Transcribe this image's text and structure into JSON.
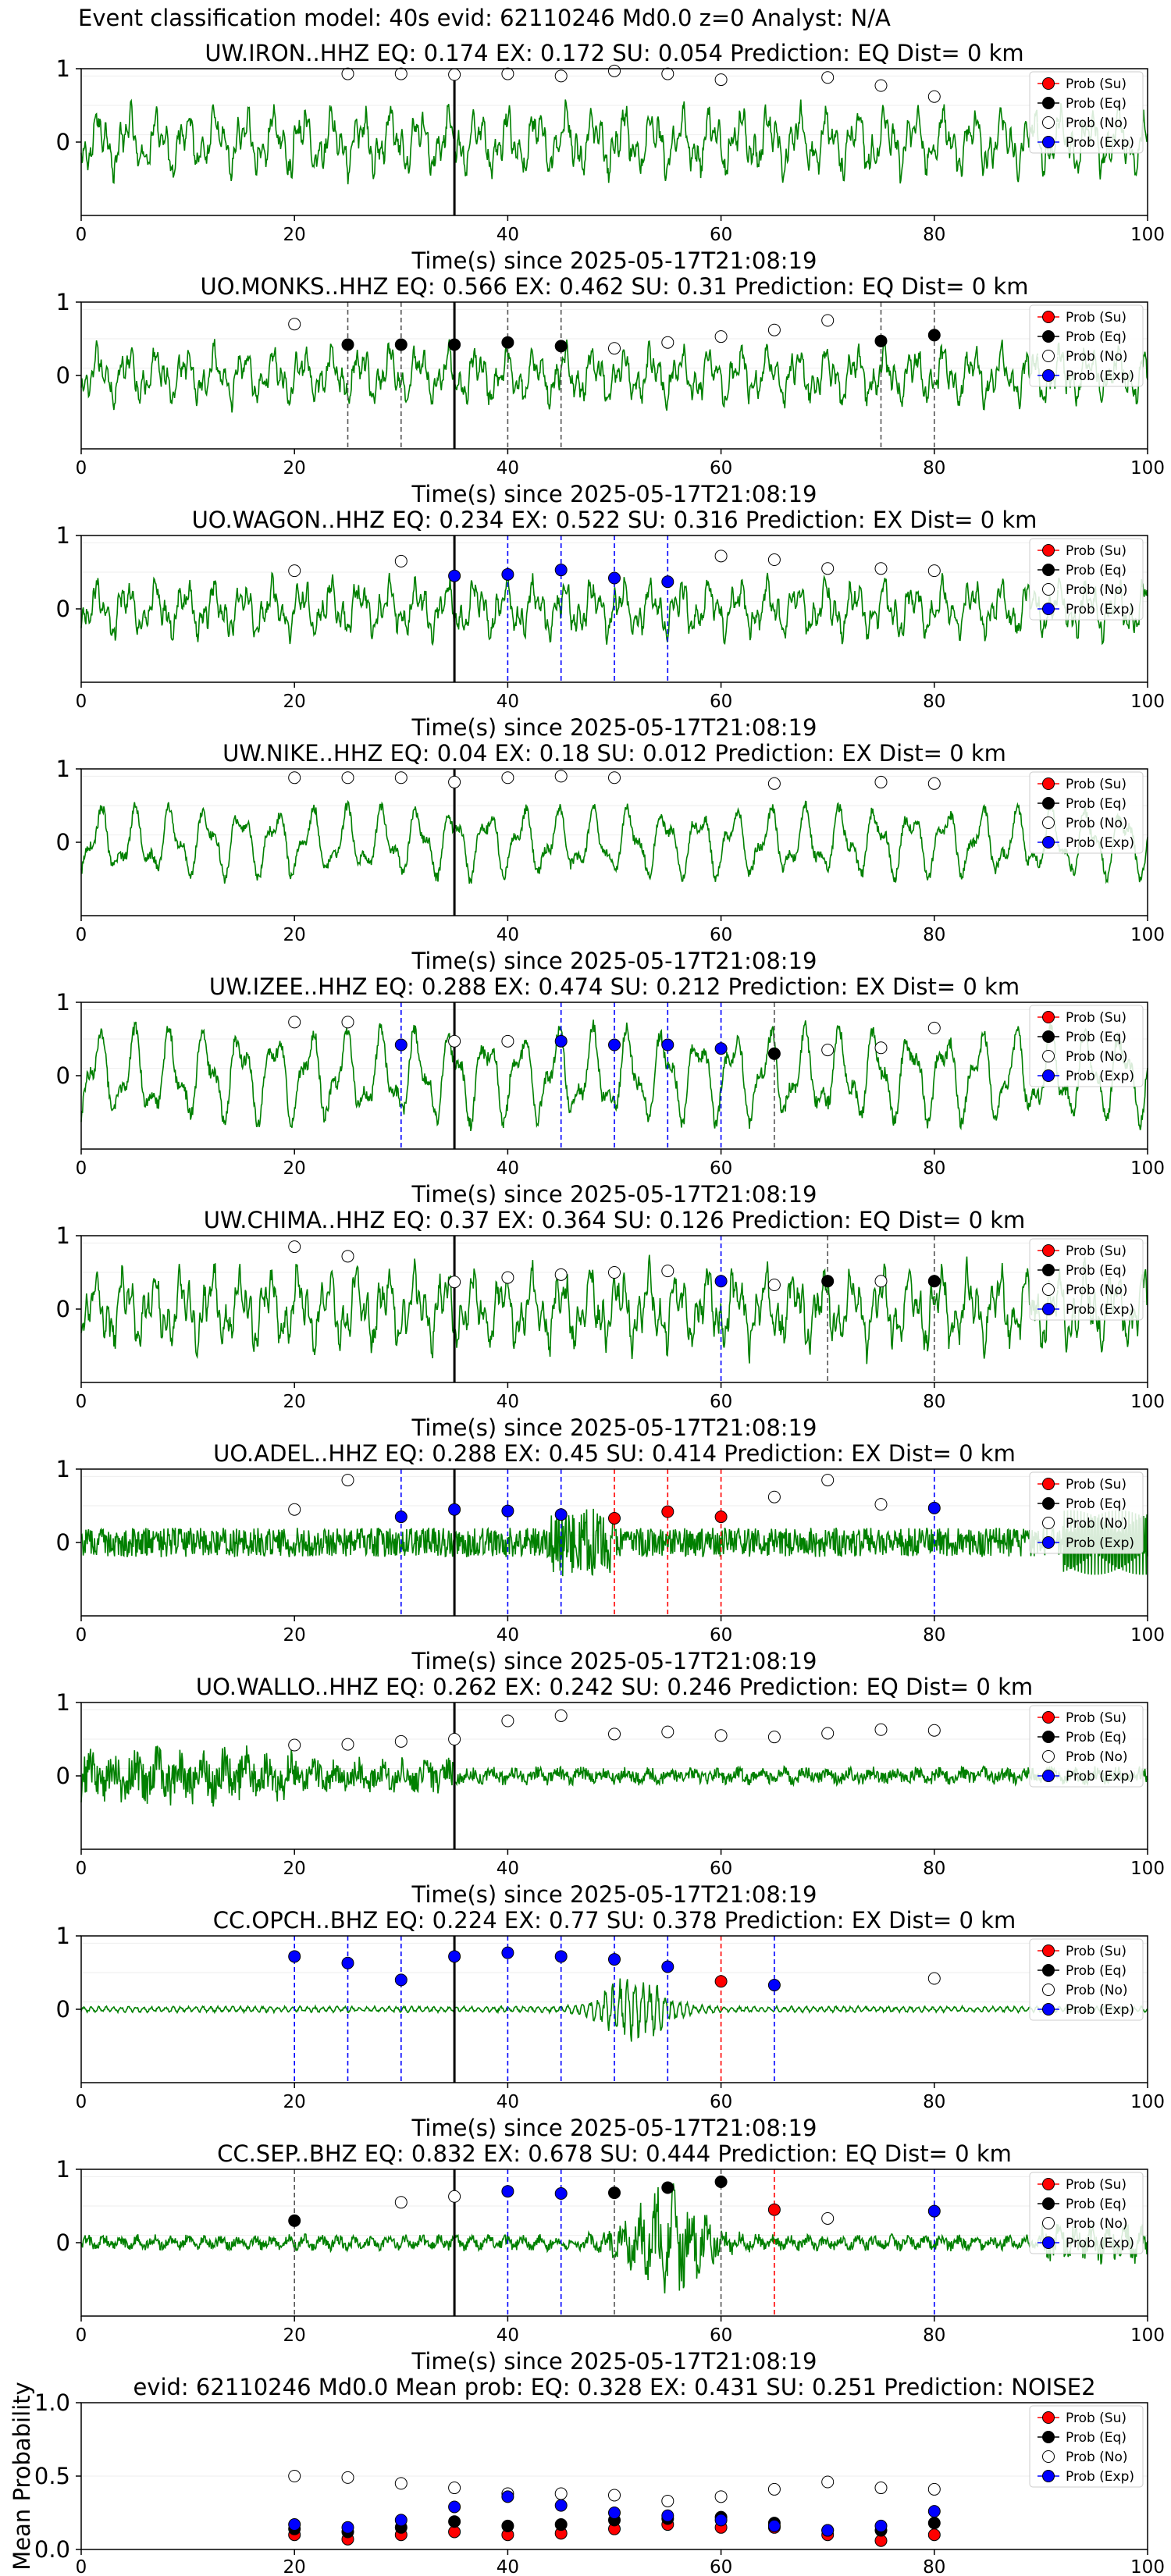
{
  "figure_title": "Event classification model: 40s evid: 62110246 Md0.0 z=0 Analyst: N/A",
  "legend": [
    "Prob (Su)",
    "Prob (Eq)",
    "Prob (No)",
    "Prob (Exp)"
  ],
  "colors": {
    "waveform": "#008000",
    "su": "#ff0000",
    "eq": "#000000",
    "no": "#ffffff",
    "exp": "#0000ff",
    "pick_line": "#000000"
  },
  "chart_data": [
    {
      "type": "line",
      "title": "UW.IRON..HHZ   EQ: 0.174  EX: 0.172  SU: 0.054   Prediction: EQ    Dist= 0 km",
      "xlabel": "Time(s) since 2025-05-17T21:08:19",
      "xlim": [
        0,
        100
      ],
      "ylim": [
        -1,
        1
      ],
      "xticks": [
        "0",
        "20",
        "40",
        "60",
        "80",
        "100"
      ],
      "yticks": [
        "1",
        "0"
      ],
      "pick_time": 35,
      "waveform_char": "broadband",
      "waveform_amp": 0.35,
      "windows": [
        {
          "t": 25,
          "no": 0.93
        },
        {
          "t": 30,
          "no": 0.93
        },
        {
          "t": 35,
          "no": 0.92
        },
        {
          "t": 40,
          "no": 0.93
        },
        {
          "t": 45,
          "no": 0.9
        },
        {
          "t": 50,
          "no": 0.97
        },
        {
          "t": 55,
          "no": 0.93
        },
        {
          "t": 60,
          "no": 0.85
        },
        {
          "t": 70,
          "no": 0.88
        },
        {
          "t": 75,
          "no": 0.77
        },
        {
          "t": 80,
          "no": 0.62
        }
      ],
      "decision_lines": []
    },
    {
      "type": "line",
      "title": "UO.MONKS..HHZ   EQ: 0.566  EX: 0.462  SU: 0.31   Prediction: EQ    Dist= 0 km",
      "xlabel": "Time(s) since 2025-05-17T21:08:19",
      "xlim": [
        0,
        100
      ],
      "ylim": [
        -1,
        1
      ],
      "xticks": [
        "0",
        "20",
        "40",
        "60",
        "80",
        "100"
      ],
      "yticks": [
        "1",
        "0"
      ],
      "pick_time": 35,
      "waveform_char": "broadband",
      "waveform_amp": 0.3,
      "windows": [
        {
          "t": 20,
          "no": 0.7
        },
        {
          "t": 25,
          "eq": 0.42
        },
        {
          "t": 30,
          "eq": 0.42
        },
        {
          "t": 35,
          "eq": 0.42
        },
        {
          "t": 40,
          "eq": 0.45
        },
        {
          "t": 45,
          "eq": 0.4
        },
        {
          "t": 50,
          "no": 0.37
        },
        {
          "t": 55,
          "no": 0.45
        },
        {
          "t": 60,
          "no": 0.53
        },
        {
          "t": 65,
          "no": 0.62
        },
        {
          "t": 70,
          "no": 0.75
        },
        {
          "t": 75,
          "eq": 0.47
        },
        {
          "t": 80,
          "eq": 0.55
        }
      ],
      "decision_lines": [
        {
          "t": 25,
          "cls": "eq"
        },
        {
          "t": 30,
          "cls": "eq"
        },
        {
          "t": 40,
          "cls": "eq"
        },
        {
          "t": 45,
          "cls": "eq"
        },
        {
          "t": 75,
          "cls": "eq"
        },
        {
          "t": 80,
          "cls": "eq"
        }
      ]
    },
    {
      "type": "line",
      "title": "UO.WAGON..HHZ   EQ: 0.234  EX: 0.522  SU: 0.316   Prediction: EX    Dist= 0 km",
      "xlabel": "Time(s) since 2025-05-17T21:08:19",
      "xlim": [
        0,
        100
      ],
      "ylim": [
        -1,
        1
      ],
      "xticks": [
        "0",
        "20",
        "40",
        "60",
        "80",
        "100"
      ],
      "yticks": [
        "1",
        "0"
      ],
      "pick_time": 35,
      "waveform_char": "broadband",
      "waveform_amp": 0.3,
      "windows": [
        {
          "t": 20,
          "no": 0.52
        },
        {
          "t": 30,
          "no": 0.65
        },
        {
          "t": 35,
          "exp": 0.45
        },
        {
          "t": 40,
          "exp": 0.47
        },
        {
          "t": 45,
          "exp": 0.53
        },
        {
          "t": 50,
          "exp": 0.42
        },
        {
          "t": 55,
          "exp": 0.37
        },
        {
          "t": 60,
          "no": 0.72
        },
        {
          "t": 65,
          "no": 0.67
        },
        {
          "t": 70,
          "no": 0.55
        },
        {
          "t": 75,
          "no": 0.55
        },
        {
          "t": 80,
          "no": 0.52
        }
      ],
      "decision_lines": [
        {
          "t": 40,
          "cls": "exp"
        },
        {
          "t": 45,
          "cls": "exp"
        },
        {
          "t": 50,
          "cls": "exp"
        },
        {
          "t": 55,
          "cls": "exp"
        }
      ]
    },
    {
      "type": "line",
      "title": "UW.NIKE..HHZ   EQ: 0.04  EX: 0.18  SU: 0.012   Prediction: EX    Dist= 0 km",
      "xlabel": "Time(s) since 2025-05-17T21:08:19",
      "xlim": [
        0,
        100
      ],
      "ylim": [
        -1,
        1
      ],
      "xticks": [
        "0",
        "20",
        "40",
        "60",
        "80",
        "100"
      ],
      "yticks": [
        "1",
        "0"
      ],
      "pick_time": 35,
      "waveform_char": "lowfreq",
      "waveform_amp": 0.38,
      "windows": [
        {
          "t": 20,
          "no": 0.88
        },
        {
          "t": 25,
          "no": 0.88
        },
        {
          "t": 30,
          "no": 0.88
        },
        {
          "t": 35,
          "no": 0.82
        },
        {
          "t": 40,
          "no": 0.88
        },
        {
          "t": 45,
          "no": 0.9
        },
        {
          "t": 50,
          "no": 0.88
        },
        {
          "t": 65,
          "no": 0.8
        },
        {
          "t": 75,
          "no": 0.82
        },
        {
          "t": 80,
          "no": 0.8
        }
      ],
      "decision_lines": []
    },
    {
      "type": "line",
      "title": "UW.IZEE..HHZ   EQ: 0.288  EX: 0.474  SU: 0.212   Prediction: EX    Dist= 0 km",
      "xlabel": "Time(s) since 2025-05-17T21:08:19",
      "xlim": [
        0,
        100
      ],
      "ylim": [
        -1,
        1
      ],
      "xticks": [
        "0",
        "20",
        "40",
        "60",
        "80",
        "100"
      ],
      "yticks": [
        "1",
        "0"
      ],
      "pick_time": 35,
      "waveform_char": "lowfreq",
      "waveform_amp": 0.5,
      "windows": [
        {
          "t": 20,
          "no": 0.73
        },
        {
          "t": 25,
          "no": 0.73
        },
        {
          "t": 30,
          "exp": 0.42
        },
        {
          "t": 35,
          "no": 0.47
        },
        {
          "t": 40,
          "no": 0.47
        },
        {
          "t": 45,
          "exp": 0.47
        },
        {
          "t": 50,
          "exp": 0.42
        },
        {
          "t": 55,
          "exp": 0.42
        },
        {
          "t": 60,
          "exp": 0.37
        },
        {
          "t": 65,
          "eq": 0.3
        },
        {
          "t": 70,
          "no": 0.35
        },
        {
          "t": 75,
          "no": 0.38
        },
        {
          "t": 80,
          "no": 0.65
        }
      ],
      "decision_lines": [
        {
          "t": 30,
          "cls": "exp"
        },
        {
          "t": 45,
          "cls": "exp"
        },
        {
          "t": 50,
          "cls": "exp"
        },
        {
          "t": 55,
          "cls": "exp"
        },
        {
          "t": 60,
          "cls": "exp"
        },
        {
          "t": 65,
          "cls": "eq"
        }
      ]
    },
    {
      "type": "line",
      "title": "UW.CHIMA..HHZ   EQ: 0.37  EX: 0.364  SU: 0.126   Prediction: EQ    Dist= 0 km",
      "xlabel": "Time(s) since 2025-05-17T21:08:19",
      "xlim": [
        0,
        100
      ],
      "ylim": [
        -1,
        1
      ],
      "xticks": [
        "0",
        "20",
        "40",
        "60",
        "80",
        "100"
      ],
      "yticks": [
        "1",
        "0"
      ],
      "pick_time": 35,
      "waveform_char": "broadband",
      "waveform_amp": 0.42,
      "windows": [
        {
          "t": 20,
          "no": 0.85
        },
        {
          "t": 25,
          "no": 0.72
        },
        {
          "t": 35,
          "no": 0.37
        },
        {
          "t": 40,
          "no": 0.43
        },
        {
          "t": 45,
          "no": 0.47
        },
        {
          "t": 50,
          "no": 0.5
        },
        {
          "t": 55,
          "no": 0.52
        },
        {
          "t": 60,
          "exp": 0.38
        },
        {
          "t": 65,
          "no": 0.33
        },
        {
          "t": 70,
          "eq": 0.38
        },
        {
          "t": 75,
          "no": 0.38
        },
        {
          "t": 80,
          "eq": 0.38
        }
      ],
      "decision_lines": [
        {
          "t": 60,
          "cls": "exp"
        },
        {
          "t": 70,
          "cls": "eq"
        },
        {
          "t": 80,
          "cls": "eq"
        }
      ]
    },
    {
      "type": "line",
      "title": "UO.ADEL..HHZ   EQ: 0.288  EX: 0.45  SU: 0.414   Prediction: EX    Dist= 0 km",
      "xlabel": "Time(s) since 2025-05-17T21:08:19",
      "xlim": [
        0,
        100
      ],
      "ylim": [
        -1,
        1
      ],
      "xticks": [
        "0",
        "20",
        "40",
        "60",
        "80",
        "100"
      ],
      "yticks": [
        "1",
        "0"
      ],
      "pick_time": 35,
      "waveform_char": "highfreq",
      "waveform_amp": 0.2,
      "windows": [
        {
          "t": 20,
          "no": 0.45
        },
        {
          "t": 25,
          "no": 0.85
        },
        {
          "t": 30,
          "exp": 0.35
        },
        {
          "t": 35,
          "exp": 0.45
        },
        {
          "t": 40,
          "exp": 0.43
        },
        {
          "t": 45,
          "exp": 0.38
        },
        {
          "t": 50,
          "su": 0.33
        },
        {
          "t": 55,
          "su": 0.42
        },
        {
          "t": 60,
          "su": 0.35
        },
        {
          "t": 65,
          "no": 0.62
        },
        {
          "t": 70,
          "no": 0.85
        },
        {
          "t": 75,
          "no": 0.52
        },
        {
          "t": 80,
          "exp": 0.47
        }
      ],
      "decision_lines": [
        {
          "t": 30,
          "cls": "exp"
        },
        {
          "t": 40,
          "cls": "exp"
        },
        {
          "t": 45,
          "cls": "exp"
        },
        {
          "t": 50,
          "cls": "su"
        },
        {
          "t": 55,
          "cls": "su"
        },
        {
          "t": 60,
          "cls": "su"
        },
        {
          "t": 80,
          "cls": "exp"
        }
      ]
    },
    {
      "type": "line",
      "title": "UO.WALLO..HHZ   EQ: 0.262  EX: 0.242  SU: 0.246   Prediction: EQ    Dist= 0 km",
      "xlabel": "Time(s) since 2025-05-17T21:08:19",
      "xlim": [
        0,
        100
      ],
      "ylim": [
        -1,
        1
      ],
      "xticks": [
        "0",
        "20",
        "40",
        "60",
        "80",
        "100"
      ],
      "yticks": [
        "1",
        "0"
      ],
      "pick_time": 35,
      "waveform_char": "decay",
      "waveform_amp": 0.22,
      "windows": [
        {
          "t": 20,
          "no": 0.42
        },
        {
          "t": 25,
          "no": 0.43
        },
        {
          "t": 30,
          "no": 0.47
        },
        {
          "t": 35,
          "no": 0.5
        },
        {
          "t": 40,
          "no": 0.75
        },
        {
          "t": 45,
          "no": 0.82
        },
        {
          "t": 50,
          "no": 0.57
        },
        {
          "t": 55,
          "no": 0.6
        },
        {
          "t": 60,
          "no": 0.55
        },
        {
          "t": 65,
          "no": 0.53
        },
        {
          "t": 70,
          "no": 0.58
        },
        {
          "t": 75,
          "no": 0.63
        },
        {
          "t": 80,
          "no": 0.62
        }
      ],
      "decision_lines": []
    },
    {
      "type": "line",
      "title": "CC.OPCH..BHZ   EQ: 0.224  EX: 0.77  SU: 0.378   Prediction: EX    Dist= 0 km",
      "xlabel": "Time(s) since 2025-05-17T21:08:19",
      "xlim": [
        0,
        100
      ],
      "ylim": [
        -1,
        1
      ],
      "xticks": [
        "0",
        "20",
        "40",
        "60",
        "80",
        "100"
      ],
      "yticks": [
        "1",
        "0"
      ],
      "pick_time": 35,
      "waveform_char": "quiet_event",
      "waveform_amp": 0.05,
      "windows": [
        {
          "t": 20,
          "exp": 0.72
        },
        {
          "t": 25,
          "exp": 0.63
        },
        {
          "t": 30,
          "exp": 0.4
        },
        {
          "t": 35,
          "exp": 0.72
        },
        {
          "t": 40,
          "exp": 0.77
        },
        {
          "t": 45,
          "exp": 0.72
        },
        {
          "t": 50,
          "exp": 0.68
        },
        {
          "t": 55,
          "exp": 0.58
        },
        {
          "t": 60,
          "su": 0.38
        },
        {
          "t": 65,
          "exp": 0.33
        },
        {
          "t": 80,
          "no": 0.42
        }
      ],
      "decision_lines": [
        {
          "t": 20,
          "cls": "exp"
        },
        {
          "t": 25,
          "cls": "exp"
        },
        {
          "t": 30,
          "cls": "exp"
        },
        {
          "t": 40,
          "cls": "exp"
        },
        {
          "t": 45,
          "cls": "exp"
        },
        {
          "t": 50,
          "cls": "exp"
        },
        {
          "t": 55,
          "cls": "exp"
        },
        {
          "t": 60,
          "cls": "su"
        },
        {
          "t": 65,
          "cls": "exp"
        }
      ]
    },
    {
      "type": "line",
      "title": "CC.SEP..BHZ   EQ: 0.832  EX: 0.678  SU: 0.444   Prediction: EQ    Dist= 0 km",
      "xlabel": "Time(s) since 2025-05-17T21:08:19",
      "xlim": [
        0,
        100
      ],
      "ylim": [
        -1,
        1
      ],
      "xticks": [
        "0",
        "20",
        "40",
        "60",
        "80",
        "100"
      ],
      "yticks": [
        "1",
        "0"
      ],
      "pick_time": 35,
      "waveform_char": "event",
      "waveform_amp": 0.1,
      "windows": [
        {
          "t": 20,
          "eq": 0.3
        },
        {
          "t": 30,
          "no": 0.55
        },
        {
          "t": 35,
          "no": 0.63
        },
        {
          "t": 40,
          "exp": 0.7
        },
        {
          "t": 45,
          "exp": 0.67
        },
        {
          "t": 50,
          "eq": 0.68
        },
        {
          "t": 55,
          "eq": 0.75
        },
        {
          "t": 60,
          "eq": 0.83
        },
        {
          "t": 65,
          "su": 0.45
        },
        {
          "t": 70,
          "no": 0.33
        },
        {
          "t": 80,
          "exp": 0.43
        }
      ],
      "decision_lines": [
        {
          "t": 20,
          "cls": "eq"
        },
        {
          "t": 40,
          "cls": "exp"
        },
        {
          "t": 45,
          "cls": "exp"
        },
        {
          "t": 50,
          "cls": "eq"
        },
        {
          "t": 60,
          "cls": "eq"
        },
        {
          "t": 65,
          "cls": "su"
        },
        {
          "t": 80,
          "cls": "exp"
        }
      ]
    },
    {
      "type": "scatter",
      "title": "evid: 62110246  Md0.0   Mean prob:   EQ: 0.328  EX: 0.431  SU: 0.251   Prediction: NOISE2",
      "xlabel": "",
      "ylabel": "Mean Probability",
      "xlim": [
        0,
        100
      ],
      "ylim": [
        0,
        1
      ],
      "xticks": [
        "0",
        "20",
        "40",
        "60",
        "80",
        "100"
      ],
      "yticks": [
        "0.0",
        "0.5",
        "1.0"
      ],
      "x": [
        20,
        25,
        30,
        35,
        40,
        45,
        50,
        55,
        60,
        65,
        70,
        75,
        80
      ],
      "series": [
        {
          "name": "Prob (Su)",
          "key": "su",
          "values": [
            0.1,
            0.07,
            0.1,
            0.12,
            0.1,
            0.11,
            0.14,
            0.17,
            0.15,
            0.15,
            0.1,
            0.06,
            0.1
          ]
        },
        {
          "name": "Prob (Eq)",
          "key": "eq",
          "values": [
            0.14,
            0.12,
            0.15,
            0.19,
            0.16,
            0.17,
            0.2,
            0.21,
            0.22,
            0.18,
            0.13,
            0.13,
            0.18
          ]
        },
        {
          "name": "Prob (No)",
          "key": "no",
          "values": [
            0.5,
            0.49,
            0.45,
            0.42,
            0.38,
            0.38,
            0.37,
            0.33,
            0.36,
            0.41,
            0.46,
            0.42,
            0.41
          ]
        },
        {
          "name": "Prob (Exp)",
          "key": "exp",
          "values": [
            0.17,
            0.15,
            0.2,
            0.29,
            0.36,
            0.3,
            0.25,
            0.23,
            0.2,
            0.16,
            0.13,
            0.16,
            0.26
          ]
        }
      ]
    }
  ]
}
